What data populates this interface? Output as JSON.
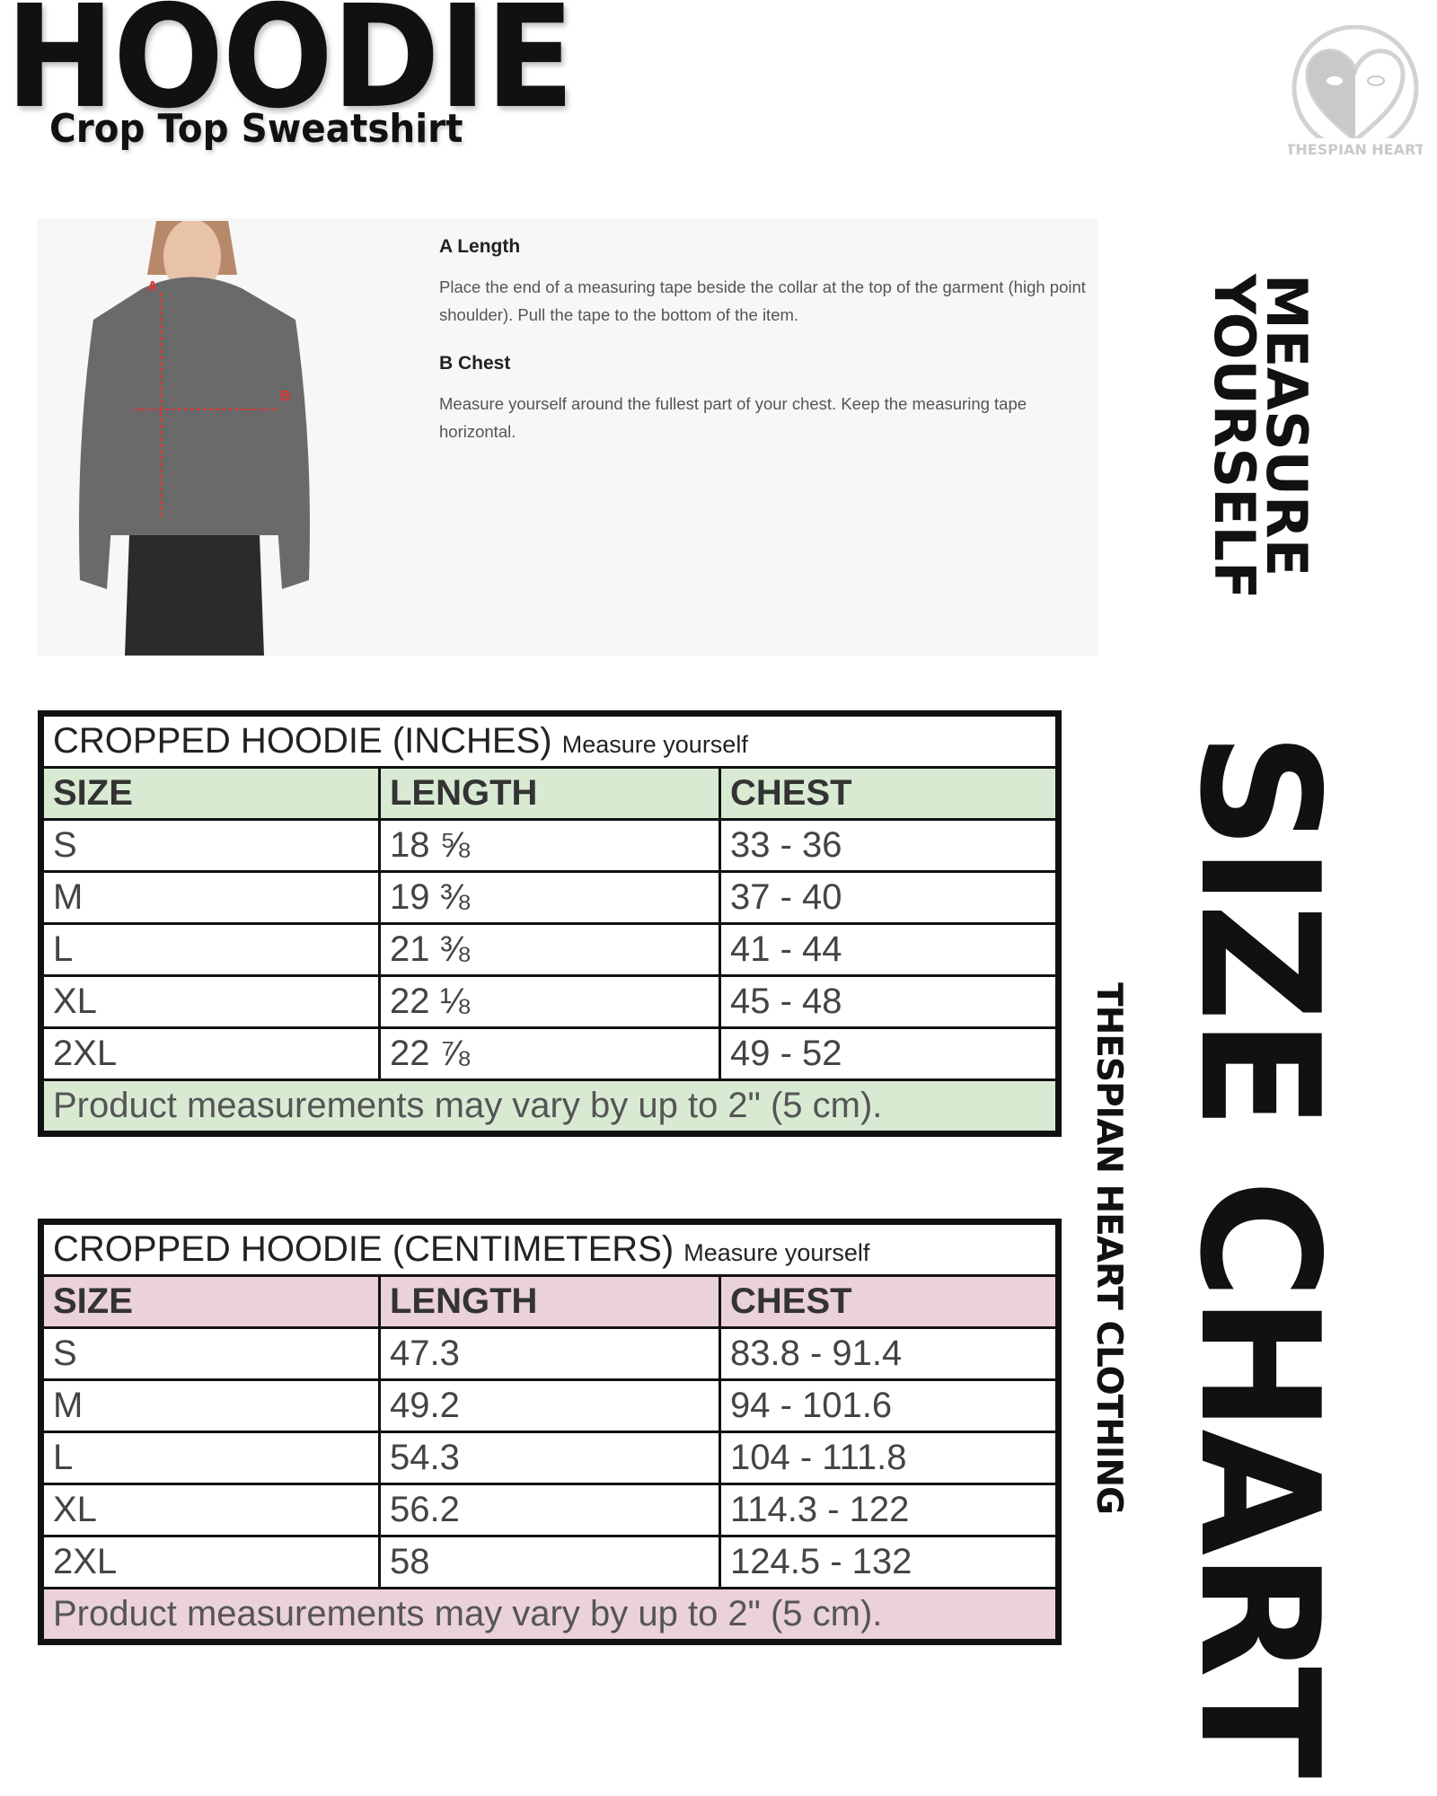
{
  "header": {
    "title": "HOODIE",
    "subtitle": "Crop Top Sweatshirt",
    "logo_text": "THESPIAN HEART"
  },
  "measure": {
    "marker_a": "A",
    "marker_b": "B",
    "items": [
      {
        "title": "A Length",
        "desc": "Place the end of a measuring tape beside the collar at the top of the garment (high point shoulder). Pull the tape to the bottom of the item."
      },
      {
        "title": "B Chest",
        "desc": "Measure yourself around the fullest part of your chest. Keep the measuring tape horizontal."
      }
    ]
  },
  "side": {
    "measure_line1": "MEASURE",
    "measure_line2": "YOURSELF",
    "brand": "THESPIAN HEART CLOTHING",
    "size_chart": "SIZE CHART"
  },
  "colors": {
    "inches_accent": "#d9ead3",
    "cm_accent": "#ead1dc"
  },
  "tables": [
    {
      "title": "CROPPED HOODIE (INCHES)",
      "subtitle": "Measure yourself",
      "headers": [
        "SIZE",
        "LENGTH",
        "CHEST"
      ],
      "rows": [
        [
          "S",
          "18 ⅝",
          "33 - 36"
        ],
        [
          "M",
          "19 ⅜",
          "37 - 40"
        ],
        [
          "L",
          "21 ⅜",
          "41 - 44"
        ],
        [
          "XL",
          "22 ⅛",
          "45 - 48"
        ],
        [
          "2XL",
          "22 ⅞",
          "49 - 52"
        ]
      ],
      "footer": "Product measurements may vary by up to 2\" (5 cm)."
    },
    {
      "title": "CROPPED HOODIE (CENTIMETERS)",
      "subtitle": "Measure yourself",
      "headers": [
        "SIZE",
        "LENGTH",
        "CHEST"
      ],
      "rows": [
        [
          "S",
          "47.3",
          "83.8 - 91.4"
        ],
        [
          "M",
          "49.2",
          "94 - 101.6"
        ],
        [
          "L",
          "54.3",
          "104 - 111.8"
        ],
        [
          "XL",
          "56.2",
          "114.3 - 122"
        ],
        [
          "2XL",
          "58",
          "124.5 - 132"
        ]
      ],
      "footer": "Product measurements may vary by up to 2\" (5 cm)."
    }
  ]
}
